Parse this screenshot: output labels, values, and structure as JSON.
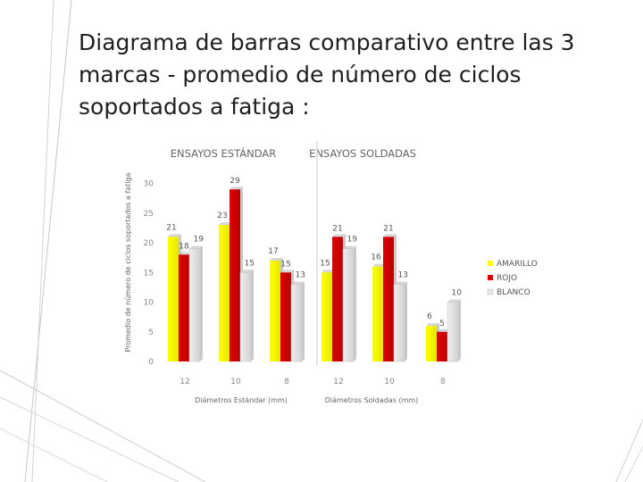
{
  "slide": {
    "title": "Diagrama de barras comparativo entre las 3 marcas - promedio de número de ciclos soportados a fatiga :"
  },
  "chart_data": {
    "type": "bar",
    "ylabel": "Promedio de número de ciclos soportados a fatiga",
    "ylim": [
      0,
      30
    ],
    "yticks": [
      0,
      5,
      10,
      15,
      20,
      25,
      30
    ],
    "groups": [
      {
        "title": "ENSAYOS ESTÁNDAR",
        "xlabel": "Diámetros Estándar (mm)",
        "categories": [
          "12",
          "10",
          "8"
        ]
      },
      {
        "title": "ENSAYOS SOLDADAS",
        "xlabel": "Diámetros Soldadas (mm)",
        "categories": [
          "12",
          "10",
          "8"
        ]
      }
    ],
    "series": [
      {
        "name": "AMARILLO",
        "color": "#ffff00",
        "values": [
          21,
          23,
          17,
          15,
          16,
          6
        ]
      },
      {
        "name": "ROJO",
        "color": "#e00000",
        "values": [
          18,
          29,
          15,
          21,
          21,
          5
        ]
      },
      {
        "name": "BLANCO",
        "color": "#e6e6e6",
        "values": [
          19,
          15,
          13,
          19,
          13,
          10
        ]
      }
    ],
    "legend": "right",
    "grid": false
  }
}
